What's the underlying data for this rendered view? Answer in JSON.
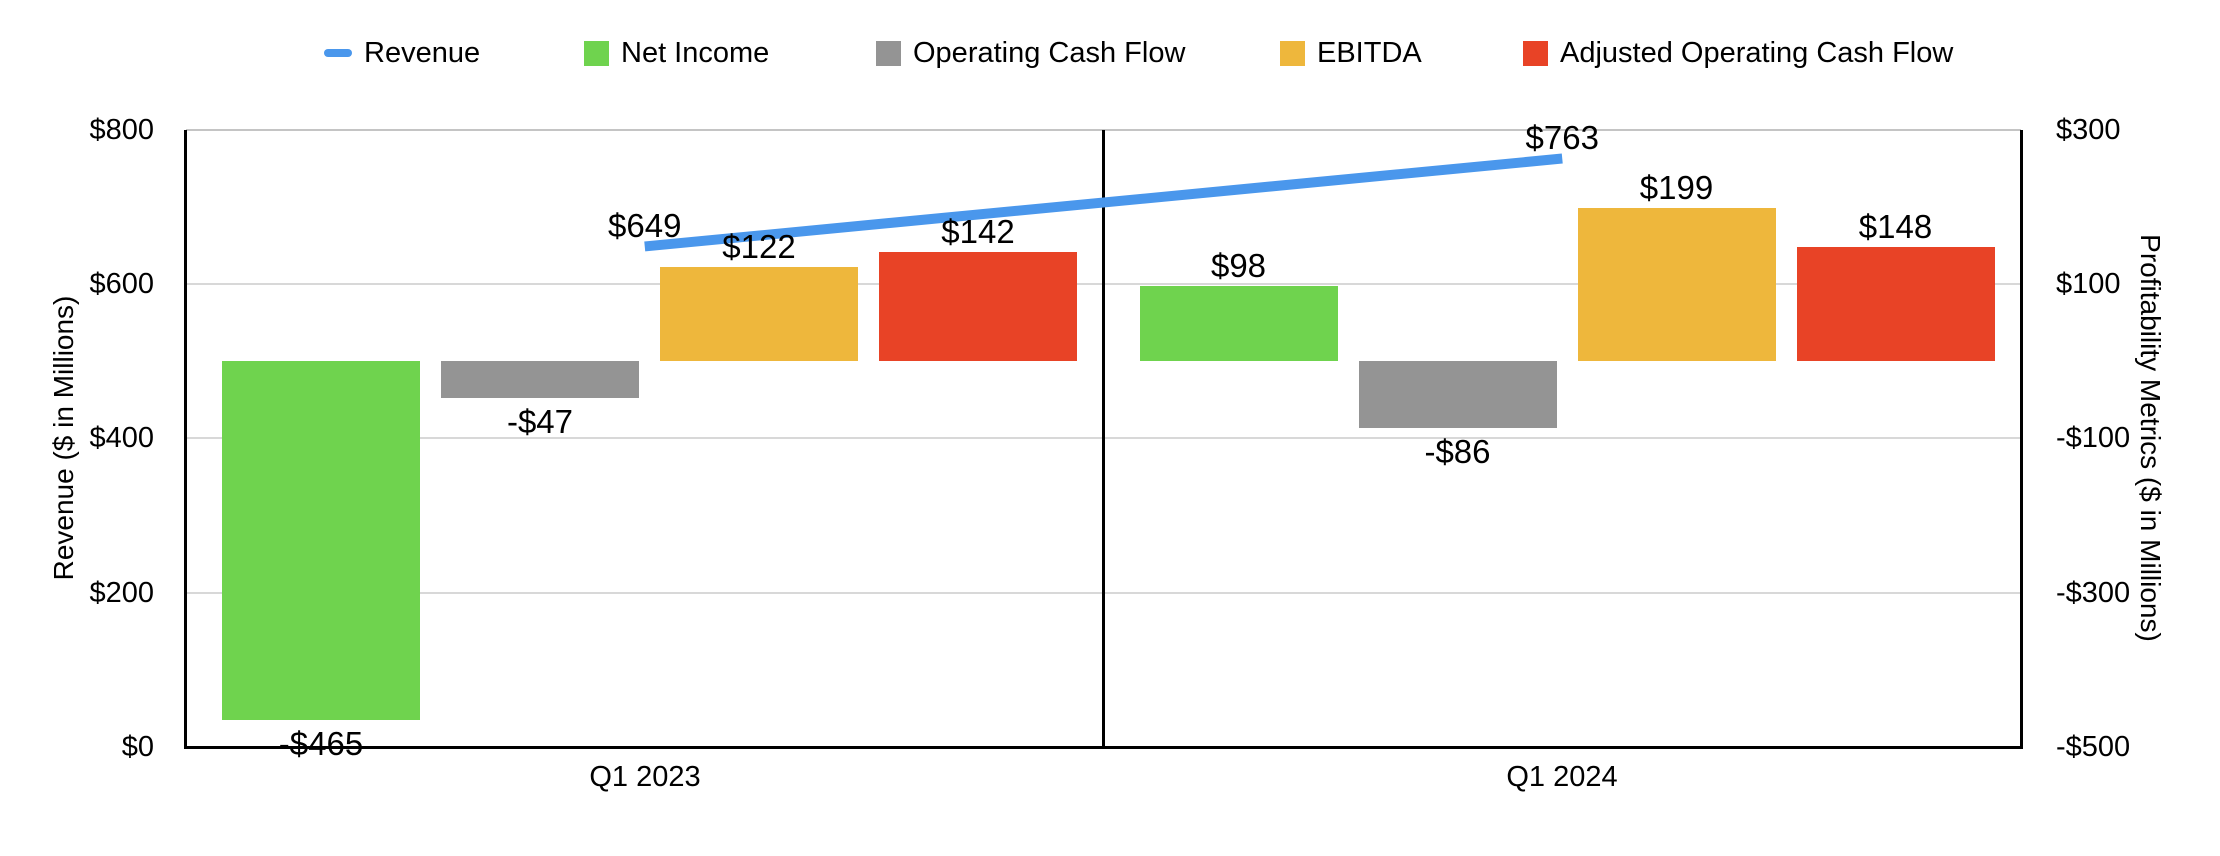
{
  "legend": {
    "items": [
      {
        "label": "Revenue",
        "swatch": "line",
        "color": "#4A97EC"
      },
      {
        "label": "Net Income",
        "swatch": "box",
        "color": "#6FD34E"
      },
      {
        "label": "Operating Cash Flow",
        "swatch": "box",
        "color": "#949494"
      },
      {
        "label": "EBITDA",
        "swatch": "box",
        "color": "#EEB73C"
      },
      {
        "label": "Adjusted Operating Cash Flow",
        "swatch": "box",
        "color": "#E84326"
      }
    ]
  },
  "axes": {
    "left": {
      "title": "Revenue ($ in Millions)",
      "ticks": [
        "$800",
        "$600",
        "$400",
        "$200",
        "$0"
      ]
    },
    "right": {
      "title": "Profitability Metrics ($ in Millions)",
      "ticks": [
        "$300",
        "$100",
        "-$100",
        "-$300",
        "-$500"
      ]
    }
  },
  "x_axis": {
    "categories": [
      "Q1 2023",
      "Q1 2024"
    ]
  },
  "chart_data": {
    "type": "combo-bar-line",
    "categories": [
      "Q1 2023",
      "Q1 2024"
    ],
    "series": [
      {
        "name": "Revenue",
        "type": "line",
        "axis": "left",
        "color": "#4A97EC",
        "values": [
          649,
          763
        ],
        "labels": [
          "$649",
          "$763"
        ]
      },
      {
        "name": "Net Income",
        "type": "bar",
        "axis": "right",
        "color": "#6FD34E",
        "values": [
          -465,
          98
        ],
        "labels": [
          "-$465",
          "$98"
        ]
      },
      {
        "name": "Operating Cash Flow",
        "type": "bar",
        "axis": "right",
        "color": "#949494",
        "values": [
          -47,
          -86
        ],
        "labels": [
          "-$47",
          "-$86"
        ]
      },
      {
        "name": "EBITDA",
        "type": "bar",
        "axis": "right",
        "color": "#EEB73C",
        "values": [
          122,
          199
        ],
        "labels": [
          "$122",
          "$199"
        ]
      },
      {
        "name": "Adjusted Operating Cash Flow",
        "type": "bar",
        "axis": "right",
        "color": "#E84326",
        "values": [
          142,
          148
        ],
        "labels": [
          "$142",
          "$148"
        ]
      }
    ],
    "left_axis": {
      "label": "Revenue ($ in Millions)",
      "min": 0,
      "max": 800,
      "tick_step": 200
    },
    "right_axis": {
      "label": "Profitability Metrics ($ in Millions)",
      "min": -500,
      "max": 300,
      "tick_step": 200
    },
    "grid": true,
    "legend_position": "top"
  }
}
